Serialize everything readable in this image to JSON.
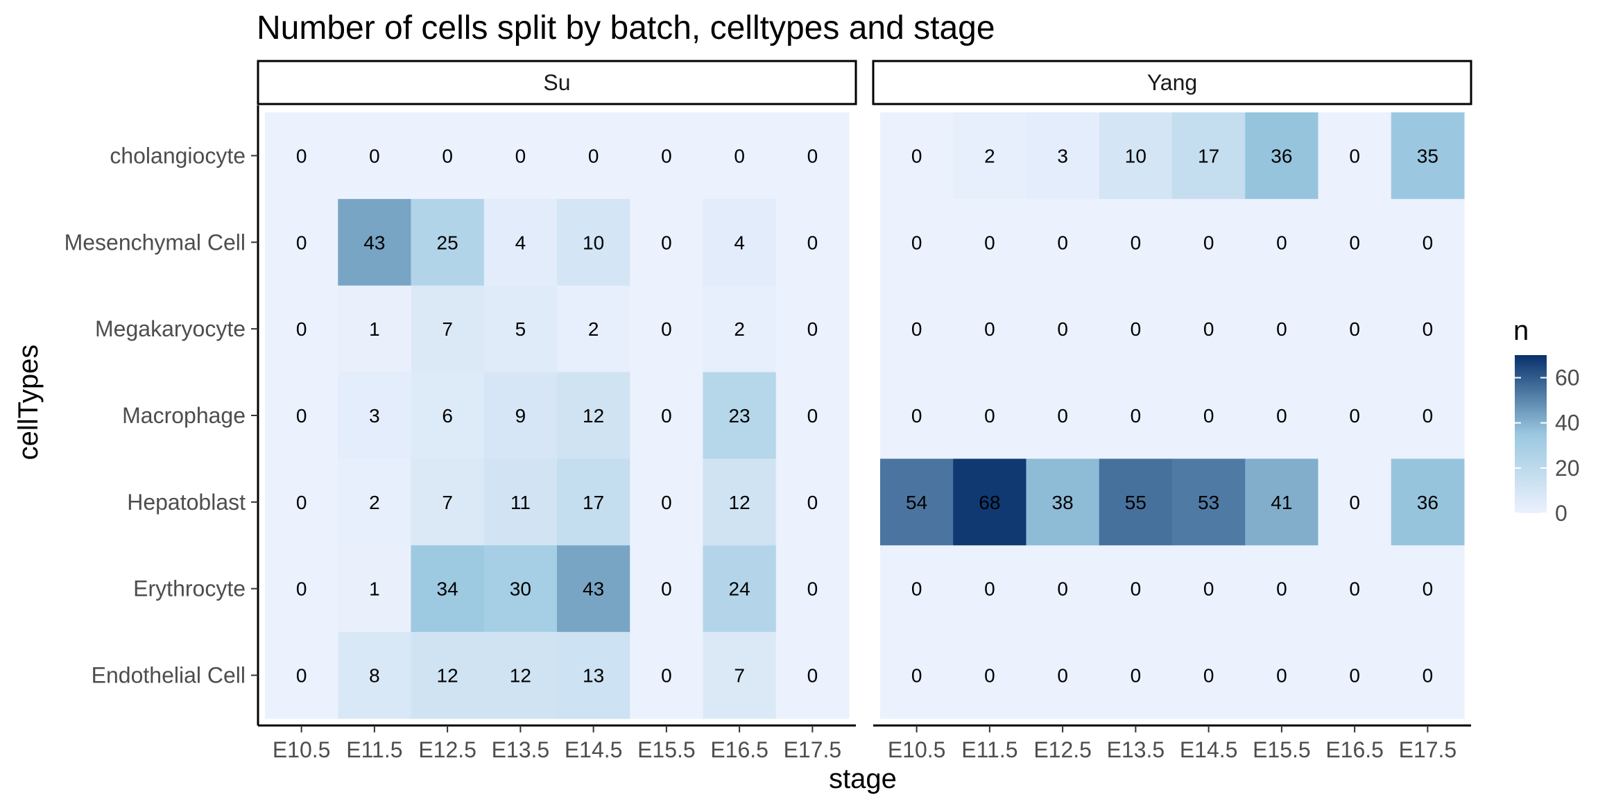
{
  "chart_data": {
    "type": "heatmap",
    "title": "Number of cells split by batch, celltypes and stage",
    "xlabel": "stage",
    "ylabel": "cellTypes",
    "x_categories": [
      "E10.5",
      "E11.5",
      "E12.5",
      "E13.5",
      "E14.5",
      "E15.5",
      "E16.5",
      "E17.5"
    ],
    "y_categories": [
      "cholangiocyte",
      "Mesenchymal Cell",
      "Megakaryocyte",
      "Macrophage",
      "Hepatoblast",
      "Erythrocyte",
      "Endothelial Cell"
    ],
    "facets": [
      {
        "name": "Su",
        "values": [
          [
            0,
            0,
            0,
            0,
            0,
            0,
            0,
            0
          ],
          [
            0,
            43,
            25,
            4,
            10,
            0,
            4,
            0
          ],
          [
            0,
            1,
            7,
            5,
            2,
            0,
            2,
            0
          ],
          [
            0,
            3,
            6,
            9,
            12,
            0,
            23,
            0
          ],
          [
            0,
            2,
            7,
            11,
            17,
            0,
            12,
            0
          ],
          [
            0,
            1,
            34,
            30,
            43,
            0,
            24,
            0
          ],
          [
            0,
            8,
            12,
            12,
            13,
            0,
            7,
            0
          ]
        ]
      },
      {
        "name": "Yang",
        "values": [
          [
            0,
            2,
            3,
            10,
            17,
            36,
            0,
            35
          ],
          [
            0,
            0,
            0,
            0,
            0,
            0,
            0,
            0
          ],
          [
            0,
            0,
            0,
            0,
            0,
            0,
            0,
            0
          ],
          [
            0,
            0,
            0,
            0,
            0,
            0,
            0,
            0
          ],
          [
            54,
            68,
            38,
            55,
            53,
            41,
            0,
            36
          ],
          [
            0,
            0,
            0,
            0,
            0,
            0,
            0,
            0
          ],
          [
            0,
            0,
            0,
            0,
            0,
            0,
            0,
            0
          ]
        ]
      }
    ],
    "legend": {
      "title": "n",
      "position": "right",
      "ticks": [
        0,
        20,
        40,
        60
      ],
      "range": [
        0,
        70
      ]
    },
    "colors": {
      "low": "#EBF1FD",
      "mid": "#9BC8E0",
      "high": "#08306B"
    },
    "grid": false
  }
}
